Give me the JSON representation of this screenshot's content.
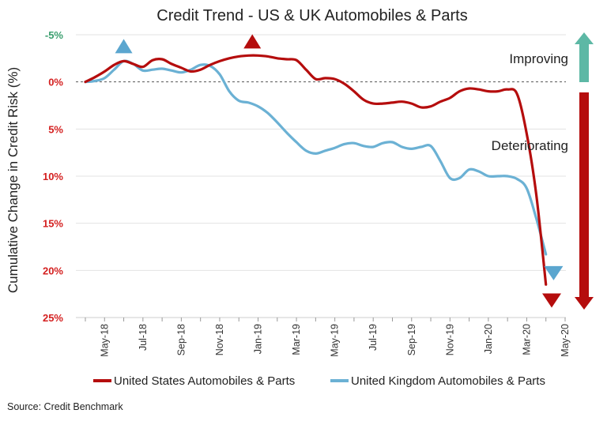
{
  "chart_data": {
    "type": "line",
    "title": "Credit Trend - US & UK Automobiles & Parts",
    "ylabel": "Cumulative Change in Credit Risk (%)",
    "xlabel": "",
    "y_axis": {
      "min": -5,
      "max": 25,
      "inverted": true,
      "ticks": [
        {
          "value": -5,
          "label": "-5%",
          "color": "#3a9e6e"
        },
        {
          "value": 0,
          "label": "0%",
          "color": "#d42020"
        },
        {
          "value": 5,
          "label": "5%",
          "color": "#d42020"
        },
        {
          "value": 10,
          "label": "10%",
          "color": "#d42020"
        },
        {
          "value": 15,
          "label": "15%",
          "color": "#d42020"
        },
        {
          "value": 20,
          "label": "20%",
          "color": "#d42020"
        },
        {
          "value": 25,
          "label": "25%",
          "color": "#d42020"
        }
      ]
    },
    "x_axis": {
      "min": 0,
      "max": 25.7,
      "ticks": [
        {
          "value": 1,
          "label": "May-18"
        },
        {
          "value": 3,
          "label": "Jul-18"
        },
        {
          "value": 5,
          "label": "Sep-18"
        },
        {
          "value": 7,
          "label": "Nov-18"
        },
        {
          "value": 9,
          "label": "Jan-19"
        },
        {
          "value": 11,
          "label": "Mar-19"
        },
        {
          "value": 13,
          "label": "May-19"
        },
        {
          "value": 15,
          "label": "Jul-19"
        },
        {
          "value": 17,
          "label": "Sep-19"
        },
        {
          "value": 19,
          "label": "Nov-19"
        },
        {
          "value": 21,
          "label": "Jan-20"
        },
        {
          "value": 23,
          "label": "Mar-20"
        },
        {
          "value": 25,
          "label": "May-20"
        }
      ]
    },
    "grid": "horizontal",
    "zero_line": "dashed",
    "legend_position": "bottom",
    "series": [
      {
        "name": "United States Automobiles & Parts",
        "color": "#b50d0d",
        "x": [
          0,
          0.5,
          1,
          1.5,
          2,
          2.5,
          3,
          3.5,
          4,
          4.5,
          5,
          5.5,
          6,
          6.5,
          7,
          7.5,
          8,
          8.5,
          9,
          9.5,
          10,
          10.5,
          11,
          11.5,
          12,
          12.5,
          13,
          13.5,
          14,
          14.5,
          15,
          15.5,
          16,
          16.5,
          17,
          17.5,
          18,
          18.5,
          19,
          19.5,
          20,
          20.5,
          21,
          21.5,
          22,
          22.5,
          23,
          23.5,
          24
        ],
        "values": [
          0,
          -0.5,
          -1.1,
          -1.8,
          -2.2,
          -1.9,
          -1.6,
          -2.3,
          -2.4,
          -1.9,
          -1.5,
          -1.1,
          -1.3,
          -1.8,
          -2.2,
          -2.5,
          -2.7,
          -2.8,
          -2.8,
          -2.7,
          -2.5,
          -2.4,
          -2.3,
          -1.3,
          -0.3,
          -0.4,
          -0.3,
          0.2,
          1.0,
          1.9,
          2.3,
          2.3,
          2.2,
          2.1,
          2.3,
          2.7,
          2.6,
          2.1,
          1.7,
          1.0,
          0.7,
          0.8,
          1.0,
          1.0,
          0.8,
          1.3,
          5.5,
          12.0,
          21.5
        ]
      },
      {
        "name": "United Kingdom Automobiles & Parts",
        "color": "#6bb1d4",
        "x": [
          0,
          0.5,
          1,
          1.5,
          2,
          2.5,
          3,
          3.5,
          4,
          4.5,
          5,
          5.5,
          6,
          6.5,
          7,
          7.5,
          8,
          8.5,
          9,
          9.5,
          10,
          10.5,
          11,
          11.5,
          12,
          12.5,
          13,
          13.5,
          14,
          14.5,
          15,
          15.5,
          16,
          16.5,
          17,
          17.5,
          18,
          18.5,
          19,
          19.5,
          20,
          20.5,
          21,
          21.5,
          22,
          22.5,
          23,
          23.5,
          24
        ],
        "values": [
          0,
          -0.1,
          -0.4,
          -1.3,
          -2.2,
          -1.9,
          -1.2,
          -1.3,
          -1.4,
          -1.2,
          -1.0,
          -1.3,
          -1.8,
          -1.7,
          -0.8,
          1.0,
          2.0,
          2.2,
          2.6,
          3.3,
          4.3,
          5.4,
          6.4,
          7.3,
          7.6,
          7.3,
          7.0,
          6.6,
          6.5,
          6.8,
          6.9,
          6.5,
          6.4,
          6.9,
          7.1,
          6.9,
          6.8,
          8.4,
          10.2,
          10.2,
          9.3,
          9.5,
          10.0,
          10.0,
          10.0,
          10.3,
          11.3,
          14.5,
          18.3
        ]
      }
    ],
    "annotations": {
      "markers": [
        {
          "shape": "triangle-up",
          "x": 2,
          "y": -3.8,
          "color": "#5ba6cf"
        },
        {
          "shape": "triangle-up",
          "x": 8.7,
          "y": -4.3,
          "color": "#b50d0d"
        },
        {
          "shape": "triangle-down",
          "x": 24.4,
          "y": 20.3,
          "color": "#5ba6cf"
        },
        {
          "shape": "triangle-down",
          "x": 24.3,
          "y": 23.2,
          "color": "#b50d0d"
        }
      ],
      "improving": {
        "label": "Improving",
        "color": "#5db8a5"
      },
      "deteriorating": {
        "label": "Deteriorating",
        "color": "#b50d0d"
      }
    },
    "source": "Source: Credit Benchmark"
  }
}
